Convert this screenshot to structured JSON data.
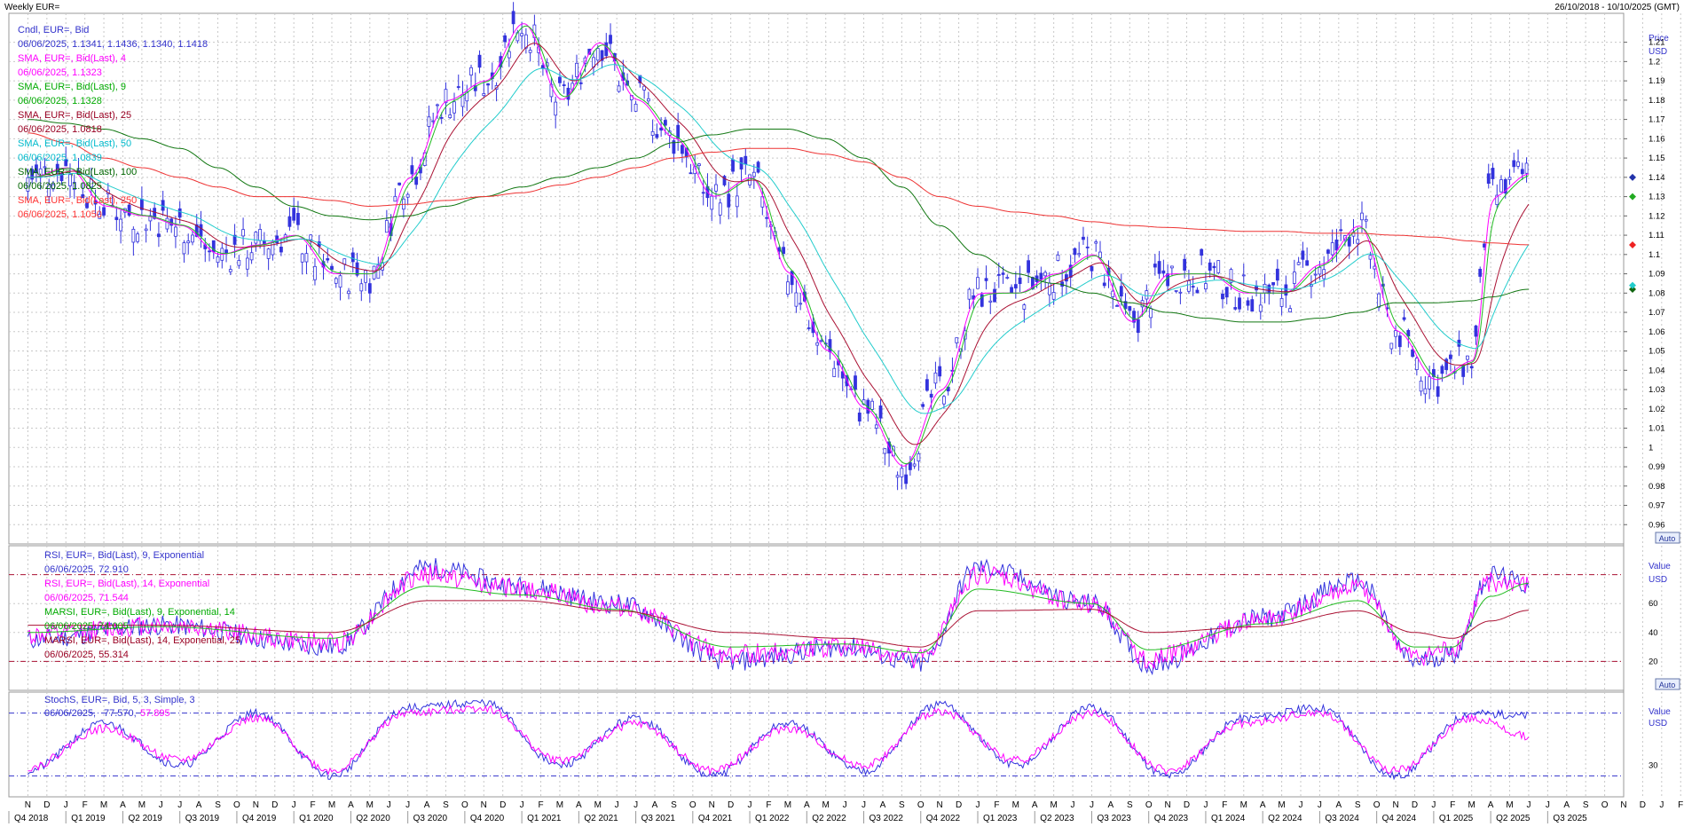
{
  "header": {
    "title": "Weekly EUR=",
    "date_range": "26/10/2018 - 10/10/2025 (GMT)"
  },
  "main_panel": {
    "legend": [
      {
        "label": "Cndl, EUR=, Bid",
        "value": "06/06/2025, 1.1341, 1.1436, 1.1340, 1.1418",
        "color": "#3333cc"
      },
      {
        "label": "SMA, EUR=, Bid(Last), 4",
        "value": "06/06/2025, 1.1323",
        "color": "#ff00ff"
      },
      {
        "label": "SMA, EUR=, Bid(Last), 9",
        "value": "06/06/2025, 1.1328",
        "color": "#00aa00"
      },
      {
        "label": "SMA, EUR=, Bid(Last), 25",
        "value": "06/06/2025, 1.0818",
        "color": "#990022"
      },
      {
        "label": "SMA, EUR=, Bid(Last), 50",
        "value": "06/06/2025, 1.0839",
        "color": "#00bbcc"
      },
      {
        "label": "SMA, EUR=, Bid(Last), 100",
        "value": "06/06/2025, 1.0825",
        "color": "#006600"
      },
      {
        "label": "SMA, EUR=, Bid(Last), 250",
        "value": "06/06/2025, 1.1050",
        "color": "#ff3333"
      }
    ],
    "axis_title": "Price",
    "axis_unit": "USD",
    "auto_button": "Auto"
  },
  "rsi_panel": {
    "legend": [
      {
        "label": "RSI, EUR=, Bid(Last), 9, Exponential",
        "value": "06/06/2025, 72.910",
        "color": "#3333cc"
      },
      {
        "label": "RSI, EUR=, Bid(Last), 14, Exponential",
        "value": "06/06/2025, 71.544",
        "color": "#ff00ff"
      },
      {
        "label": "MARSI, EUR=, Bid(Last), 9, Exponential, 14",
        "value": "06/06/2025, 74.005",
        "color": "#00aa00"
      },
      {
        "label": "MARSI, EUR=, Bid(Last), 14, Exponential, 25",
        "value": "06/06/2025, 55.314",
        "color": "#990022"
      }
    ],
    "axis_title": "Value",
    "axis_unit": "USD",
    "auto_button": "Auto"
  },
  "stoch_panel": {
    "legend_label": "StochS, EUR=, Bid,  5, 3, Simple, 3",
    "legend_date": "06/06/2025,",
    "legend_k": "77.570,",
    "legend_d": "57.895",
    "axis_title": "Value",
    "axis_unit": "USD"
  },
  "colors": {
    "candle": "#3333dd",
    "sma4": "#ff00ff",
    "sma9": "#22bb22",
    "sma25": "#aa1133",
    "sma50": "#22cccc",
    "sma100": "#117711",
    "sma250": "#ee3333",
    "grid": "#c8c8c8"
  },
  "chart_data": [
    {
      "type": "line",
      "title": "Weekly EUR=",
      "subtitle": "Cndl, EUR=, Bid",
      "ylabel": "Price USD",
      "ylim": [
        0.95,
        1.225
      ],
      "y_ticks": [
        1.21,
        1.2,
        1.19,
        1.18,
        1.17,
        1.16,
        1.15,
        1.14,
        1.13,
        1.12,
        1.11,
        1.1,
        1.09,
        1.08,
        1.07,
        1.06,
        1.05,
        1.04,
        1.03,
        1.02,
        1.01,
        1,
        0.99,
        0.98,
        0.97,
        0.96
      ],
      "x_ticks": [
        "N",
        "D",
        "J",
        "F",
        "M",
        "A",
        "M",
        "J",
        "J",
        "A",
        "S",
        "O",
        "N",
        "D",
        "J",
        "F",
        "M",
        "A",
        "M",
        "J",
        "J",
        "A",
        "S",
        "O",
        "N",
        "D",
        "J",
        "F",
        "M",
        "A",
        "M",
        "J",
        "J",
        "A",
        "S",
        "O",
        "N",
        "D",
        "J",
        "F",
        "M",
        "A",
        "M",
        "J",
        "J",
        "A",
        "S",
        "O",
        "N",
        "D",
        "J",
        "F",
        "M",
        "A",
        "M",
        "J",
        "J",
        "A",
        "S",
        "O",
        "N",
        "D",
        "J",
        "F",
        "M",
        "A",
        "M",
        "J",
        "J",
        "A",
        "S",
        "O",
        "N",
        "D",
        "J",
        "F",
        "M",
        "A",
        "M",
        "J",
        "J",
        "A",
        "S",
        "O",
        "N",
        "D",
        "J",
        "F",
        "M",
        "A",
        "M",
        "J",
        "J",
        "A",
        "S",
        "O"
      ],
      "quarters": [
        "Q4 2018",
        "Q1 2019",
        "Q2 2019",
        "Q3 2019",
        "Q4 2019",
        "Q1 2020",
        "Q2 2020",
        "Q3 2020",
        "Q4 2020",
        "Q1 2021",
        "Q2 2021",
        "Q3 2021",
        "Q4 2021",
        "Q1 2022",
        "Q2 2022",
        "Q3 2022",
        "Q4 2022",
        "Q1 2023",
        "Q2 2023",
        "Q3 2023",
        "Q4 2023",
        "Q1 2024",
        "Q2 2024",
        "Q3 2024",
        "Q4 2024",
        "Q1 2025",
        "Q2 2025",
        "Q3 2025"
      ],
      "x": [
        "2018-11",
        "2019-01",
        "2019-03",
        "2019-05",
        "2019-07",
        "2019-09",
        "2019-11",
        "2020-01",
        "2020-03",
        "2020-05",
        "2020-07",
        "2020-09",
        "2020-11",
        "2021-01",
        "2021-03",
        "2021-05",
        "2021-07",
        "2021-09",
        "2021-11",
        "2022-01",
        "2022-03",
        "2022-05",
        "2022-07",
        "2022-09",
        "2022-11",
        "2023-01",
        "2023-03",
        "2023-05",
        "2023-07",
        "2023-09",
        "2023-11",
        "2024-01",
        "2024-03",
        "2024-05",
        "2024-07",
        "2024-09",
        "2024-11",
        "2025-01",
        "2025-03",
        "2025-04",
        "2025-06"
      ],
      "series": [
        {
          "name": "Cndl, EUR=, Bid",
          "values": [
            1.14,
            1.145,
            1.125,
            1.12,
            1.115,
            1.1,
            1.105,
            1.11,
            1.09,
            1.09,
            1.14,
            1.18,
            1.19,
            1.22,
            1.18,
            1.21,
            1.18,
            1.16,
            1.13,
            1.14,
            1.09,
            1.05,
            1.02,
            0.99,
            1.03,
            1.08,
            1.08,
            1.09,
            1.1,
            1.065,
            1.09,
            1.09,
            1.08,
            1.08,
            1.095,
            1.115,
            1.06,
            1.035,
            1.045,
            1.13,
            1.142
          ]
        },
        {
          "name": "SMA, EUR=, Bid(Last), 250",
          "values": [
            1.163,
            1.158,
            1.15,
            1.145,
            1.14,
            1.135,
            1.13,
            1.13,
            1.128,
            1.125,
            1.126,
            1.128,
            1.13,
            1.132,
            1.136,
            1.14,
            1.145,
            1.15,
            1.153,
            1.155,
            1.155,
            1.152,
            1.148,
            1.14,
            1.13,
            1.125,
            1.122,
            1.12,
            1.117,
            1.115,
            1.114,
            1.113,
            1.112,
            1.112,
            1.111,
            1.111,
            1.11,
            1.109,
            1.107,
            1.106,
            1.105
          ]
        },
        {
          "name": "SMA, EUR=, Bid(Last), 100",
          "values": [
            1.17,
            1.168,
            1.165,
            1.16,
            1.155,
            1.145,
            1.135,
            1.125,
            1.12,
            1.118,
            1.12,
            1.125,
            1.13,
            1.135,
            1.14,
            1.145,
            1.15,
            1.158,
            1.162,
            1.165,
            1.165,
            1.16,
            1.15,
            1.135,
            1.115,
            1.1,
            1.09,
            1.085,
            1.08,
            1.075,
            1.07,
            1.067,
            1.065,
            1.065,
            1.067,
            1.07,
            1.075,
            1.075,
            1.076,
            1.078,
            1.082
          ]
        }
      ]
    },
    {
      "type": "line",
      "title": "RSI",
      "ylabel": "Value USD",
      "ylim": [
        0,
        100
      ],
      "y_ticks": [
        60,
        40,
        20
      ],
      "guide_levels": [
        80,
        20
      ],
      "x": [
        "2018-11",
        "2019-06",
        "2020-03",
        "2020-08",
        "2021-01",
        "2021-06",
        "2021-12",
        "2022-06",
        "2022-10",
        "2023-01",
        "2023-07",
        "2023-10",
        "2024-04",
        "2024-09",
        "2024-12",
        "2025-02",
        "2025-04",
        "2025-06"
      ],
      "series": [
        {
          "name": "RSI, EUR=, Bid(Last), 9, Exponential",
          "values": [
            35,
            45,
            30,
            85,
            72,
            60,
            20,
            30,
            18,
            85,
            60,
            18,
            50,
            75,
            20,
            25,
            80,
            72.91
          ]
        },
        {
          "name": "RSI, EUR=, Bid(Last), 14, Exponential",
          "values": [
            38,
            45,
            33,
            80,
            70,
            58,
            25,
            30,
            22,
            80,
            60,
            22,
            48,
            70,
            22,
            28,
            75,
            71.544
          ]
        },
        {
          "name": "MARSI, EUR=, Bid(Last), 9, Exponential, 14",
          "values": [
            40,
            44,
            36,
            72,
            66,
            56,
            30,
            32,
            26,
            70,
            60,
            28,
            46,
            62,
            30,
            30,
            65,
            74.005
          ]
        },
        {
          "name": "MARSI, EUR=, Bid(Last), 14, Exponential, 25",
          "values": [
            45,
            45,
            40,
            62,
            62,
            55,
            40,
            36,
            30,
            55,
            56,
            40,
            44,
            55,
            40,
            36,
            48,
            55.314
          ]
        }
      ]
    },
    {
      "type": "line",
      "title": "StochS",
      "ylabel": "Value USD",
      "ylim": [
        0,
        100
      ],
      "y_ticks": [
        30
      ],
      "guide_levels": [
        80,
        20
      ],
      "x": [
        "2018-11",
        "2019-03",
        "2019-07",
        "2019-11",
        "2020-03",
        "2020-07",
        "2020-11",
        "2021-03",
        "2021-07",
        "2021-11",
        "2022-03",
        "2022-07",
        "2022-11",
        "2023-03",
        "2023-07",
        "2023-11",
        "2024-03",
        "2024-07",
        "2024-11",
        "2025-03",
        "2025-06"
      ],
      "series": [
        {
          "name": "StochS %K",
          "values": [
            25,
            70,
            30,
            80,
            20,
            85,
            90,
            30,
            75,
            20,
            70,
            25,
            88,
            30,
            85,
            20,
            75,
            85,
            20,
            80,
            77.57
          ]
        },
        {
          "name": "StochS %D",
          "values": [
            28,
            65,
            35,
            75,
            25,
            80,
            85,
            35,
            70,
            25,
            65,
            30,
            82,
            35,
            80,
            25,
            70,
            80,
            25,
            75,
            57.895
          ]
        }
      ]
    }
  ]
}
